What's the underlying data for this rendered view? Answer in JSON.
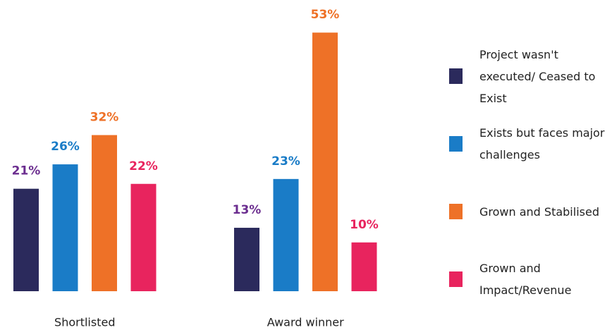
{
  "chart_data": {
    "type": "bar",
    "categories": [
      "Shortlisted",
      "Award winner"
    ],
    "series": [
      {
        "name": "Project wasn't executed/ Ceased to Exist",
        "color": "#2b2a5c",
        "label_color": "#6b2d8f",
        "values": [
          21,
          13
        ],
        "value_labels": [
          "21%",
          "13%"
        ]
      },
      {
        "name": "Exists but faces major challenges",
        "color": "#1a7cc7",
        "label_color": "#1a7cc7",
        "values": [
          26,
          23
        ],
        "value_labels": [
          "26%",
          "23%"
        ]
      },
      {
        "name": "Grown and Stabilised",
        "color": "#ee7127",
        "label_color": "#ee7127",
        "values": [
          32,
          53
        ],
        "value_labels": [
          "32%",
          "53%"
        ]
      },
      {
        "name": "Grown and Impact/Revenue",
        "color": "#e8245e",
        "label_color": "#e8245e",
        "values": [
          22,
          10
        ],
        "value_labels": [
          "22%",
          "10%"
        ]
      }
    ],
    "legend": "right"
  }
}
